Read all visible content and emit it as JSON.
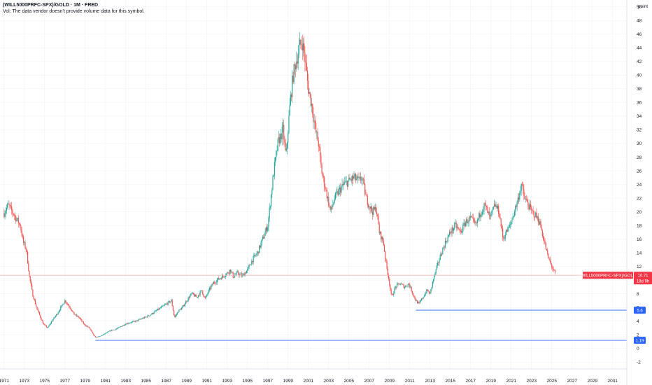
{
  "header": {
    "title": "(WILL5000PRFC-SPX)/GOLD · 1M · FRED",
    "subtitle": "Vol: The data vendor doesn't provide volume data for this symbol."
  },
  "price_scale": {
    "unit_label": "point"
  },
  "colors": {
    "up": "#26a69a",
    "down": "#ef5350",
    "hline": "#2962ff",
    "last_price_line": "#f2b8b8",
    "last_price_tag": "#f23645",
    "grid": "#eef0f3",
    "text": "#131722"
  },
  "current_price": {
    "symbol_label": "(WILL5000PRFC-SPX)/GOLD",
    "value_label": "10.71",
    "countdown": "18d 9h",
    "value": 10.71
  },
  "horizontal_lines": [
    {
      "label": "5.6",
      "value": 5.6,
      "from_x": 2011.6
    },
    {
      "label": "1.19",
      "value": 1.19,
      "from_x": 1980.0
    }
  ],
  "chart_data": {
    "type": "line",
    "title": "(WILL5000PRFC-SPX)/GOLD · 1M · FRED",
    "xlabel": "",
    "ylabel": "",
    "x_unit": "year",
    "xlim": [
      1970.6,
      2032.4
    ],
    "ylim": [
      -3,
      51
    ],
    "grid": false,
    "x_ticks": [
      "1971",
      "1973",
      "1975",
      "1977",
      "1979",
      "1981",
      "1983",
      "1985",
      "1987",
      "1989",
      "1991",
      "1993",
      "1995",
      "1997",
      "1999",
      "2001",
      "2003",
      "2005",
      "2007",
      "2009",
      "2011",
      "2013",
      "2015",
      "2017",
      "2019",
      "2021",
      "2023",
      "2025",
      "2027",
      "2029",
      "2031"
    ],
    "y_ticks": [
      50,
      48,
      46,
      44,
      42,
      40,
      38,
      36,
      34,
      32,
      30,
      28,
      26,
      24,
      22,
      20,
      18,
      16,
      14,
      12,
      10,
      8,
      6,
      4,
      2,
      0,
      -2
    ],
    "series": [
      {
        "x": [
          1971.0,
          1971.4,
          1971.8,
          1972.2,
          1972.6,
          1972.9,
          1973.2,
          1973.5,
          1973.8,
          1974.2,
          1974.6,
          1974.9,
          1975.3,
          1975.7,
          1976.2,
          1976.6,
          1977.0,
          1977.5,
          1977.9,
          1978.4,
          1978.9,
          1979.4,
          1979.8,
          1980.0,
          1980.5,
          1981.0,
          1981.5,
          1982.0,
          1982.5,
          1983.0,
          1983.5,
          1984.0,
          1984.5,
          1985.0,
          1985.5,
          1986.0,
          1986.5,
          1987.0,
          1987.5,
          1987.8,
          1988.2,
          1988.6,
          1989.0,
          1989.5,
          1990.0,
          1990.5,
          1990.8,
          1991.2,
          1991.6,
          1992.0,
          1992.5,
          1993.0,
          1993.3,
          1993.6,
          1994.0,
          1994.5,
          1995.0,
          1995.5,
          1996.0,
          1996.5,
          1997.0,
          1997.3,
          1997.6,
          1998.0,
          1998.5,
          1998.8,
          1999.2,
          1999.5,
          1999.8,
          2000.1,
          2000.4,
          2000.7,
          2001.0,
          2001.3,
          2001.7,
          2002.0,
          2002.3,
          2002.6,
          2002.9,
          2003.2,
          2003.6,
          2004.0,
          2004.5,
          2005.0,
          2005.5,
          2006.0,
          2006.3,
          2006.7,
          2007.0,
          2007.3,
          2007.7,
          2008.0,
          2008.4,
          2008.7,
          2008.9,
          2009.2,
          2009.6,
          2010.0,
          2010.5,
          2010.9,
          2011.3,
          2011.6,
          2011.9,
          2012.3,
          2012.7,
          2013.0,
          2013.3,
          2013.7,
          2014.0,
          2014.5,
          2015.0,
          2015.5,
          2016.0,
          2016.5,
          2017.0,
          2017.5,
          2018.0,
          2018.4,
          2018.9,
          2019.4,
          2019.8,
          2020.2,
          2020.5,
          2020.9,
          2021.3,
          2021.7,
          2022.0,
          2022.3,
          2022.7,
          2023.0,
          2023.4,
          2023.8,
          2024.2,
          2024.6,
          2025.0,
          2025.4
        ],
        "y": [
          19.8,
          21.0,
          20.0,
          19.0,
          18.0,
          15.5,
          14.5,
          10.5,
          8.0,
          6.0,
          4.5,
          3.5,
          3.0,
          4.0,
          5.0,
          6.0,
          7.0,
          6.0,
          5.0,
          4.5,
          3.5,
          3.0,
          2.0,
          1.6,
          1.8,
          2.2,
          2.6,
          2.8,
          3.2,
          3.6,
          3.8,
          4.0,
          4.3,
          4.6,
          5.0,
          5.5,
          6.0,
          6.5,
          7.0,
          4.5,
          5.5,
          6.0,
          7.0,
          8.0,
          7.5,
          8.5,
          7.2,
          8.5,
          9.5,
          10.0,
          10.5,
          11.0,
          11.5,
          10.5,
          11.0,
          10.6,
          11.5,
          13.0,
          14.0,
          16.0,
          18.0,
          22.0,
          26.0,
          30.0,
          32.0,
          28.0,
          36.0,
          40.0,
          42.0,
          44.0,
          45.0,
          42.0,
          38.0,
          36.0,
          32.0,
          30.0,
          26.0,
          24.0,
          22.0,
          20.0,
          22.0,
          23.0,
          24.0,
          24.5,
          25.0,
          24.5,
          25.0,
          22.0,
          21.0,
          20.0,
          20.5,
          17.0,
          15.5,
          12.0,
          10.5,
          7.5,
          9.0,
          9.5,
          9.0,
          9.5,
          8.0,
          7.0,
          6.5,
          7.5,
          8.5,
          8.0,
          10.0,
          12.0,
          13.5,
          15.5,
          17.0,
          18.0,
          17.0,
          18.5,
          19.0,
          18.0,
          20.0,
          21.0,
          19.0,
          21.0,
          20.0,
          16.0,
          17.0,
          18.0,
          20.0,
          22.0,
          24.0,
          22.0,
          21.0,
          20.0,
          19.5,
          18.5,
          16.0,
          13.5,
          12.0,
          10.71
        ]
      }
    ]
  }
}
